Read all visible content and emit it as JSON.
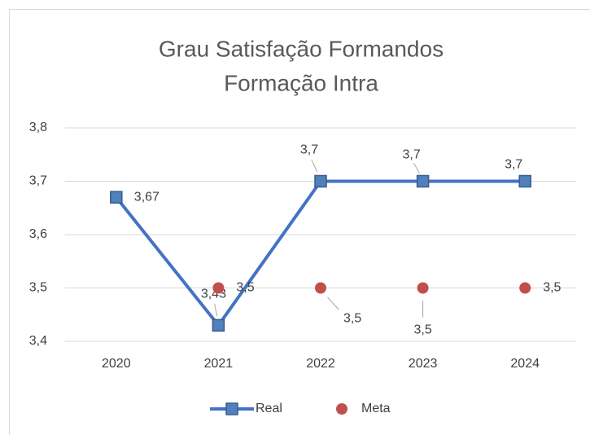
{
  "chart_data": {
    "type": "line",
    "title": [
      "Grau Satisfação Formandos",
      "Formação Intra"
    ],
    "categories": [
      "2020",
      "2021",
      "2022",
      "2023",
      "2024"
    ],
    "series": [
      {
        "name": "Real",
        "color": "#4472c4",
        "values": [
          3.67,
          3.43,
          3.7,
          3.7,
          3.7
        ],
        "value_labels": [
          "3,67",
          "3,43",
          "3,7",
          "3,7",
          "3,7"
        ]
      },
      {
        "name": "Meta",
        "color": "#c0504d",
        "values": [
          null,
          3.5,
          3.5,
          3.5,
          3.5
        ],
        "value_labels": [
          null,
          "3,5",
          "3,5",
          "3,5",
          "3,5"
        ]
      }
    ],
    "ylim": [
      3.4,
      3.8
    ],
    "yticks": [
      {
        "value": 3.4,
        "label": "3,4"
      },
      {
        "value": 3.5,
        "label": "3,5"
      },
      {
        "value": 3.6,
        "label": "3,6"
      },
      {
        "value": 3.7,
        "label": "3,7"
      },
      {
        "value": 3.8,
        "label": "3,8"
      }
    ],
    "grid": true,
    "legend": "bottom"
  }
}
